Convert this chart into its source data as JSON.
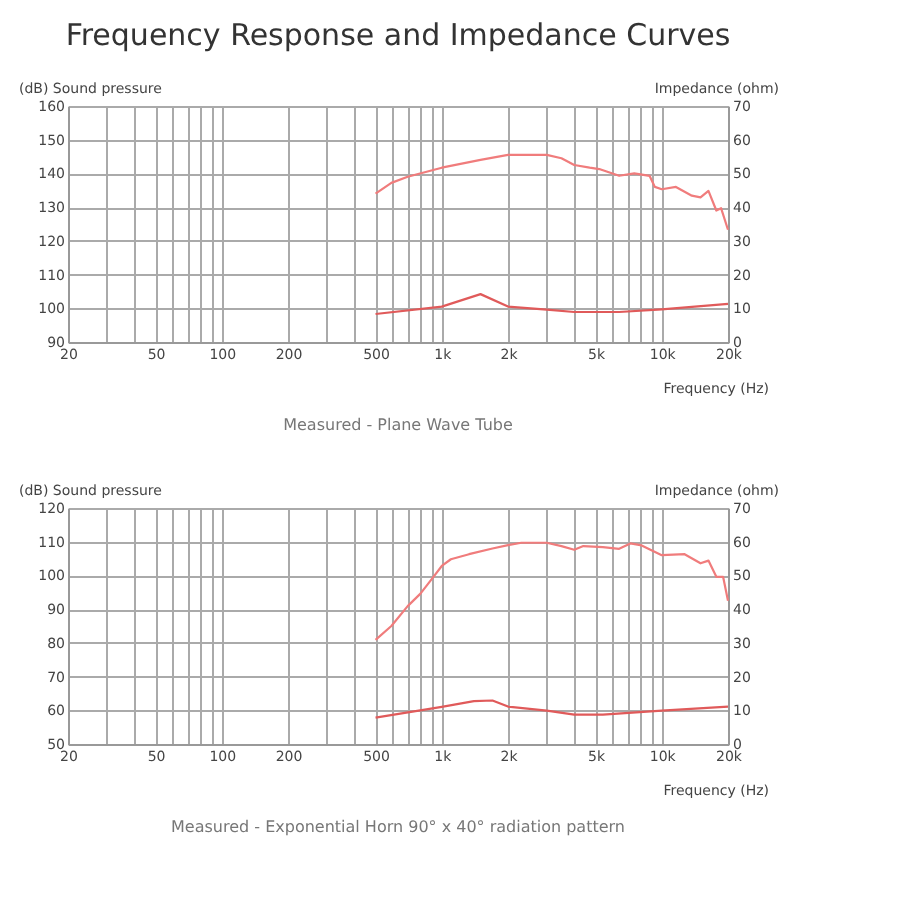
{
  "chart_data": [
    {
      "type": "line",
      "title": "Frequency Response and Impedance Curves",
      "xlabel": "Frequency (Hz)",
      "ylabel": "(dB) Sound pressure",
      "y2label": "Impedance (ohm)",
      "annotations": [
        "Measured - Plane Wave Tube"
      ],
      "log": "x",
      "grid": true,
      "marker": "none",
      "line_style": "solid",
      "xlim": [
        20,
        20000
      ],
      "ylim": [
        90,
        160
      ],
      "y2lim": [
        0,
        70
      ],
      "xticks": [
        20,
        {
          "value": 30,
          "label": null
        },
        {
          "value": 40,
          "label": null
        },
        50,
        {
          "value": 60,
          "label": null
        },
        {
          "value": 70,
          "label": null
        },
        {
          "value": 80,
          "label": null
        },
        {
          "value": 90,
          "label": null
        },
        100,
        200,
        {
          "value": 300,
          "label": null
        },
        {
          "value": 400,
          "label": null
        },
        500,
        {
          "value": 600,
          "label": null
        },
        {
          "value": 700,
          "label": null
        },
        {
          "value": 800,
          "label": null
        },
        {
          "value": 900,
          "label": null
        },
        {
          "value": 1000,
          "label": "1k"
        },
        {
          "value": 2000,
          "label": "2k"
        },
        {
          "value": 3000,
          "label": null
        },
        {
          "value": 4000,
          "label": null
        },
        {
          "value": 5000,
          "label": "5k"
        },
        {
          "value": 6000,
          "label": null
        },
        {
          "value": 7000,
          "label": null
        },
        {
          "value": 8000,
          "label": null
        },
        {
          "value": 9000,
          "label": null
        },
        {
          "value": 10000,
          "label": "10k"
        },
        {
          "value": 20000,
          "label": "20k"
        }
      ],
      "yticks": [
        90,
        100,
        110,
        120,
        130,
        140,
        150,
        160
      ],
      "y2ticks": [
        0,
        10,
        20,
        30,
        40,
        50,
        60,
        70
      ],
      "series": [
        {
          "color": "#f07c7c",
          "x": [
            500,
            590,
            700,
            1000,
            1500,
            2000,
            3000,
            3500,
            4000,
            4700,
            5200,
            6400,
            7500,
            8800,
            9300,
            10000,
            11600,
            13700,
            15000,
            16300,
            17700,
            18600,
            20000
          ],
          "values": [
            134,
            137.2,
            139,
            141.7,
            144,
            145.5,
            145.5,
            144.5,
            142.5,
            141.7,
            141.3,
            139.3,
            140,
            139.3,
            136,
            135.3,
            136,
            133.4,
            132.9,
            134.8,
            129,
            129.7,
            123.3
          ]
        },
        {
          "color": "#e05a5a",
          "axis": "y2",
          "x": [
            500,
            1000,
            1500,
            2000,
            3000,
            4000,
            6400,
            10000,
            20000
          ],
          "values": [
            8.3,
            10.5,
            14.2,
            10.5,
            9.6,
            8.9,
            8.9,
            9.7,
            11.3
          ]
        }
      ]
    },
    {
      "type": "line",
      "xlabel": "Frequency (Hz)",
      "ylabel": "(dB) Sound pressure",
      "y2label": "Impedance (ohm)",
      "annotations": [
        "Measured - Exponential Horn 90° x 40° radiation pattern"
      ],
      "log": "x",
      "grid": true,
      "marker": "none",
      "line_style": "solid",
      "xlim": [
        20,
        20000
      ],
      "ylim": [
        50,
        120
      ],
      "y2lim": [
        0,
        70
      ],
      "xticks": [
        20,
        {
          "value": 30,
          "label": null
        },
        {
          "value": 40,
          "label": null
        },
        50,
        {
          "value": 60,
          "label": null
        },
        {
          "value": 70,
          "label": null
        },
        {
          "value": 80,
          "label": null
        },
        {
          "value": 90,
          "label": null
        },
        100,
        200,
        {
          "value": 300,
          "label": null
        },
        {
          "value": 400,
          "label": null
        },
        500,
        {
          "value": 600,
          "label": null
        },
        {
          "value": 700,
          "label": null
        },
        {
          "value": 800,
          "label": null
        },
        {
          "value": 900,
          "label": null
        },
        {
          "value": 1000,
          "label": "1k"
        },
        {
          "value": 2000,
          "label": "2k"
        },
        {
          "value": 3000,
          "label": null
        },
        {
          "value": 4000,
          "label": null
        },
        {
          "value": 5000,
          "label": "5k"
        },
        {
          "value": 6000,
          "label": null
        },
        {
          "value": 7000,
          "label": null
        },
        {
          "value": 8000,
          "label": null
        },
        {
          "value": 9000,
          "label": null
        },
        {
          "value": 10000,
          "label": "10k"
        },
        {
          "value": 20000,
          "label": "20k"
        }
      ],
      "yticks": [
        50,
        60,
        70,
        80,
        90,
        100,
        110,
        120
      ],
      "y2ticks": [
        0,
        10,
        20,
        30,
        40,
        50,
        60,
        70
      ],
      "series": [
        {
          "color": "#f07c7c",
          "x": [
            500,
            590,
            700,
            800,
            900,
            1000,
            1100,
            1330,
            1700,
            2000,
            2300,
            3000,
            3500,
            4000,
            4400,
            5400,
            6400,
            7200,
            8100,
            10000,
            12700,
            15000,
            16300,
            17700,
            19000,
            20000
          ],
          "values": [
            80.9,
            85,
            90.9,
            94.6,
            98.9,
            102.8,
            104.8,
            106.3,
            108,
            109,
            109.7,
            109.7,
            108.7,
            107.6,
            108.7,
            108.4,
            107.9,
            109.5,
            108.9,
            106,
            106.3,
            103.6,
            104.4,
            99.6,
            99.6,
            92.5
          ]
        },
        {
          "color": "#e05a5a",
          "axis": "y2",
          "x": [
            500,
            1000,
            1400,
            1700,
            2000,
            3000,
            4000,
            5400,
            10000,
            20000
          ],
          "values": [
            7.8,
            11,
            12.7,
            12.9,
            11.1,
            9.9,
            8.7,
            8.7,
            9.9,
            11.1
          ]
        }
      ]
    }
  ]
}
